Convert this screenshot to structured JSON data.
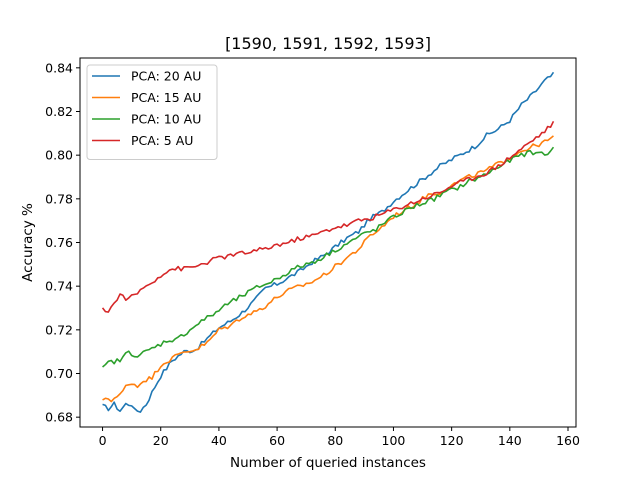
{
  "chart_data": {
    "type": "line",
    "title": "[1590, 1591, 1592, 1593]",
    "xlabel": "Number of queried instances",
    "ylabel": "Accuracy %",
    "xlim": [
      -7.75,
      162.75
    ],
    "ylim": [
      0.6755,
      0.8445
    ],
    "xticks": [
      0,
      20,
      40,
      60,
      80,
      100,
      120,
      140,
      160
    ],
    "yticks": [
      0.68,
      0.7,
      0.72,
      0.74,
      0.76,
      0.78,
      0.8,
      0.82,
      0.84
    ],
    "grid": false,
    "legend": "top-left",
    "x_range": [
      0,
      155
    ],
    "series": [
      {
        "name": "PCA: 20 AU",
        "color": "#1f77b4",
        "points": [
          [
            0,
            0.685
          ],
          [
            2,
            0.684
          ],
          [
            4,
            0.686
          ],
          [
            6,
            0.683
          ],
          [
            8,
            0.686
          ],
          [
            10,
            0.686
          ],
          [
            11,
            0.683
          ],
          [
            13,
            0.683
          ],
          [
            15,
            0.686
          ],
          [
            18,
            0.694
          ],
          [
            20,
            0.699
          ],
          [
            24,
            0.706
          ],
          [
            28,
            0.71
          ],
          [
            32,
            0.711
          ],
          [
            36,
            0.716
          ],
          [
            40,
            0.721
          ],
          [
            44,
            0.724
          ],
          [
            48,
            0.728
          ],
          [
            52,
            0.733
          ],
          [
            56,
            0.739
          ],
          [
            60,
            0.741
          ],
          [
            64,
            0.744
          ],
          [
            68,
            0.747
          ],
          [
            72,
            0.751
          ],
          [
            76,
            0.754
          ],
          [
            80,
            0.758
          ],
          [
            84,
            0.762
          ],
          [
            88,
            0.765
          ],
          [
            92,
            0.771
          ],
          [
            96,
            0.774
          ],
          [
            100,
            0.779
          ],
          [
            104,
            0.783
          ],
          [
            108,
            0.787
          ],
          [
            112,
            0.791
          ],
          [
            116,
            0.795
          ],
          [
            120,
            0.798
          ],
          [
            124,
            0.801
          ],
          [
            128,
            0.804
          ],
          [
            132,
            0.809
          ],
          [
            136,
            0.812
          ],
          [
            140,
            0.816
          ],
          [
            144,
            0.823
          ],
          [
            148,
            0.828
          ],
          [
            152,
            0.834
          ],
          [
            155,
            0.837
          ]
        ]
      },
      {
        "name": "PCA: 15 AU",
        "color": "#ff7f0e",
        "points": [
          [
            0,
            0.687
          ],
          [
            1,
            0.689
          ],
          [
            3,
            0.688
          ],
          [
            6,
            0.69
          ],
          [
            8,
            0.694
          ],
          [
            10,
            0.696
          ],
          [
            12,
            0.694
          ],
          [
            14,
            0.697
          ],
          [
            17,
            0.698
          ],
          [
            20,
            0.704
          ],
          [
            24,
            0.707
          ],
          [
            28,
            0.71
          ],
          [
            32,
            0.711
          ],
          [
            36,
            0.714
          ],
          [
            40,
            0.72
          ],
          [
            44,
            0.722
          ],
          [
            48,
            0.726
          ],
          [
            52,
            0.728
          ],
          [
            56,
            0.731
          ],
          [
            60,
            0.735
          ],
          [
            64,
            0.738
          ],
          [
            68,
            0.74
          ],
          [
            72,
            0.742
          ],
          [
            76,
            0.745
          ],
          [
            80,
            0.749
          ],
          [
            84,
            0.753
          ],
          [
            88,
            0.757
          ],
          [
            92,
            0.763
          ],
          [
            96,
            0.767
          ],
          [
            100,
            0.772
          ],
          [
            104,
            0.775
          ],
          [
            108,
            0.778
          ],
          [
            112,
            0.782
          ],
          [
            116,
            0.783
          ],
          [
            120,
            0.786
          ],
          [
            124,
            0.789
          ],
          [
            128,
            0.791
          ],
          [
            132,
            0.793
          ],
          [
            136,
            0.796
          ],
          [
            140,
            0.799
          ],
          [
            144,
            0.802
          ],
          [
            148,
            0.804
          ],
          [
            152,
            0.806
          ],
          [
            155,
            0.808
          ]
        ]
      },
      {
        "name": "PCA: 10 AU",
        "color": "#2ca02c",
        "points": [
          [
            0,
            0.702
          ],
          [
            2,
            0.705
          ],
          [
            6,
            0.706
          ],
          [
            9,
            0.71
          ],
          [
            12,
            0.708
          ],
          [
            15,
            0.71
          ],
          [
            18,
            0.712
          ],
          [
            22,
            0.715
          ],
          [
            26,
            0.716
          ],
          [
            30,
            0.72
          ],
          [
            34,
            0.724
          ],
          [
            38,
            0.727
          ],
          [
            42,
            0.731
          ],
          [
            46,
            0.734
          ],
          [
            50,
            0.737
          ],
          [
            54,
            0.74
          ],
          [
            58,
            0.742
          ],
          [
            62,
            0.745
          ],
          [
            66,
            0.748
          ],
          [
            70,
            0.75
          ],
          [
            74,
            0.752
          ],
          [
            78,
            0.755
          ],
          [
            82,
            0.758
          ],
          [
            86,
            0.761
          ],
          [
            90,
            0.764
          ],
          [
            94,
            0.766
          ],
          [
            98,
            0.77
          ],
          [
            102,
            0.773
          ],
          [
            106,
            0.776
          ],
          [
            110,
            0.778
          ],
          [
            114,
            0.78
          ],
          [
            118,
            0.783
          ],
          [
            122,
            0.785
          ],
          [
            126,
            0.788
          ],
          [
            130,
            0.79
          ],
          [
            134,
            0.793
          ],
          [
            138,
            0.796
          ],
          [
            142,
            0.799
          ],
          [
            146,
            0.801
          ],
          [
            150,
            0.801
          ],
          [
            154,
            0.801
          ],
          [
            155,
            0.803
          ]
        ]
      },
      {
        "name": "PCA: 5 AU",
        "color": "#d62728",
        "points": [
          [
            0,
            0.729
          ],
          [
            2,
            0.729
          ],
          [
            4,
            0.732
          ],
          [
            6,
            0.736
          ],
          [
            9,
            0.734
          ],
          [
            12,
            0.737
          ],
          [
            15,
            0.74
          ],
          [
            18,
            0.743
          ],
          [
            21,
            0.746
          ],
          [
            24,
            0.748
          ],
          [
            28,
            0.748
          ],
          [
            32,
            0.749
          ],
          [
            36,
            0.751
          ],
          [
            40,
            0.753
          ],
          [
            44,
            0.754
          ],
          [
            48,
            0.755
          ],
          [
            52,
            0.756
          ],
          [
            56,
            0.757
          ],
          [
            60,
            0.759
          ],
          [
            64,
            0.76
          ],
          [
            68,
            0.762
          ],
          [
            72,
            0.763
          ],
          [
            76,
            0.765
          ],
          [
            80,
            0.767
          ],
          [
            84,
            0.768
          ],
          [
            88,
            0.77
          ],
          [
            92,
            0.771
          ],
          [
            96,
            0.773
          ],
          [
            100,
            0.775
          ],
          [
            104,
            0.777
          ],
          [
            108,
            0.779
          ],
          [
            112,
            0.781
          ],
          [
            116,
            0.783
          ],
          [
            120,
            0.786
          ],
          [
            124,
            0.788
          ],
          [
            128,
            0.79
          ],
          [
            132,
            0.792
          ],
          [
            136,
            0.795
          ],
          [
            140,
            0.799
          ],
          [
            144,
            0.803
          ],
          [
            148,
            0.807
          ],
          [
            152,
            0.811
          ],
          [
            155,
            0.815
          ]
        ]
      }
    ]
  }
}
